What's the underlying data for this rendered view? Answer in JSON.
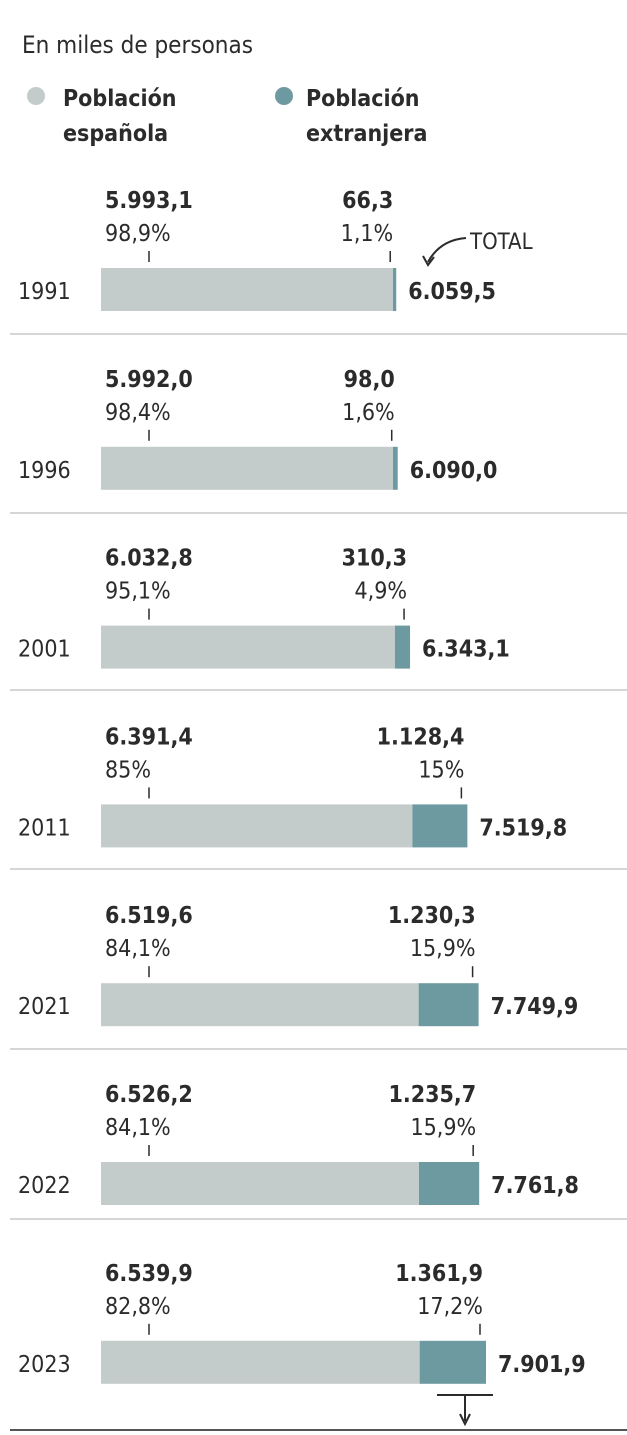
{
  "chart_data": {
    "type": "bar",
    "stacked": true,
    "orientation": "horizontal",
    "subtitle": "En miles de personas",
    "legend": [
      {
        "name": "Población española",
        "lines": [
          "Población",
          "española"
        ],
        "color": "#c3cccb"
      },
      {
        "name": "Población extranjera",
        "lines": [
          "Población",
          "extranjera"
        ],
        "color": "#6d9aa0"
      }
    ],
    "total_label": "TOTAL",
    "categories": [
      "1991",
      "1996",
      "2001",
      "2011",
      "2021",
      "2022",
      "2023"
    ],
    "series": [
      {
        "name": "Población española",
        "values": [
          5993.1,
          5992.0,
          6032.8,
          6391.4,
          6519.6,
          6526.2,
          6539.9
        ],
        "labels": [
          "5.993,1",
          "5.992,0",
          "6.032,8",
          "6.391,4",
          "6.519,6",
          "6.526,2",
          "6.539,9"
        ],
        "percents": [
          "98,9%",
          "98,4%",
          "95,1%",
          "85%",
          "84,1%",
          "84,1%",
          "82,8%"
        ]
      },
      {
        "name": "Población extranjera",
        "values": [
          66.3,
          98.0,
          310.3,
          1128.4,
          1230.3,
          1235.7,
          1361.9
        ],
        "labels": [
          "66,3",
          "98,0",
          "310,3",
          "1.128,4",
          "1.230,3",
          "1.235,7",
          "1.361,9"
        ],
        "percents": [
          "1,1%",
          "1,6%",
          "4,9%",
          "15%",
          "15,9%",
          "15,9%",
          "17,2%"
        ]
      }
    ],
    "totals": [
      6059.5,
      6090.0,
      6343.1,
      7519.8,
      7749.9,
      7761.8,
      7901.9
    ],
    "total_labels": [
      "6.059,5",
      "6.090,0",
      "6.343,1",
      "7.519,8",
      "7.749,9",
      "7.761,8",
      "7.901,9"
    ],
    "colors": {
      "spanish": "#c3cccb",
      "foreign": "#6d9aa0",
      "separator": "#c9c9c9",
      "text": "#2b2b2b",
      "bottom_rule": "#555555"
    }
  }
}
